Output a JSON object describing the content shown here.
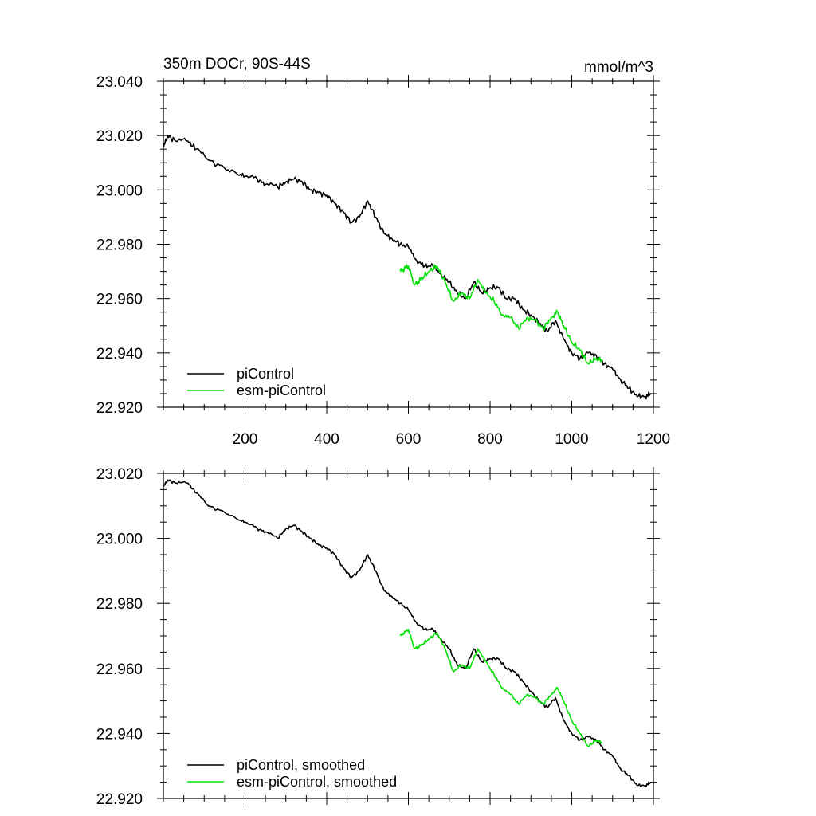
{
  "chart_data": [
    {
      "type": "line",
      "title_left": "350m DOCr, 90S-44S",
      "title_right": "mmol/m^3",
      "xlabel": "",
      "ylabel": "",
      "xlim": [
        0,
        1200
      ],
      "ylim": [
        22.92,
        23.04
      ],
      "xticks": [
        200,
        400,
        600,
        800,
        1000,
        1200
      ],
      "xtick_labels": [
        "200",
        "400",
        "600",
        "800",
        "1000",
        "1200"
      ],
      "yticks": [
        22.92,
        22.94,
        22.96,
        22.98,
        23.0,
        23.02,
        23.04
      ],
      "ytick_labels": [
        "22.920",
        "22.940",
        "22.960",
        "22.980",
        "23.000",
        "23.020",
        "23.040"
      ],
      "legend_position": "bottom-left",
      "series": [
        {
          "name": "piControl",
          "color": "#000000",
          "x": [
            1,
            10,
            30,
            60,
            80,
            110,
            150,
            180,
            200,
            230,
            250,
            280,
            300,
            320,
            340,
            360,
            380,
            400,
            420,
            440,
            460,
            480,
            500,
            520,
            540,
            560,
            580,
            600,
            620,
            640,
            660,
            680,
            700,
            720,
            740,
            760,
            780,
            800,
            820,
            840,
            860,
            880,
            900,
            920,
            940,
            960,
            980,
            1000,
            1020,
            1040,
            1060,
            1080,
            1100,
            1120,
            1140,
            1160,
            1180,
            1195
          ],
          "values": [
            23.016,
            23.02,
            23.018,
            23.018,
            23.015,
            23.011,
            23.008,
            23.006,
            23.005,
            23.004,
            23.002,
            23.001,
            23.003,
            23.004,
            23.003,
            23.0,
            22.999,
            22.998,
            22.995,
            22.992,
            22.988,
            22.99,
            22.996,
            22.99,
            22.984,
            22.982,
            22.98,
            22.979,
            22.974,
            22.972,
            22.972,
            22.969,
            22.966,
            22.962,
            22.96,
            22.966,
            22.962,
            22.964,
            22.964,
            22.96,
            22.96,
            22.956,
            22.954,
            22.951,
            22.948,
            22.952,
            22.945,
            22.94,
            22.938,
            22.94,
            22.939,
            22.936,
            22.934,
            22.93,
            22.927,
            22.924,
            22.924,
            22.925
          ]
        },
        {
          "name": "esm-piControl",
          "color": "#00e000",
          "x": [
            580,
            590,
            600,
            615,
            630,
            650,
            670,
            690,
            710,
            730,
            750,
            770,
            790,
            810,
            830,
            850,
            870,
            890,
            910,
            930,
            950,
            965,
            980,
            1000,
            1020,
            1040,
            1060,
            1075
          ],
          "values": [
            22.97,
            22.971,
            22.972,
            22.965,
            22.967,
            22.97,
            22.972,
            22.966,
            22.959,
            22.962,
            22.96,
            22.967,
            22.962,
            22.959,
            22.954,
            22.953,
            22.949,
            22.953,
            22.952,
            22.949,
            22.953,
            22.955,
            22.95,
            22.944,
            22.941,
            22.936,
            22.938,
            22.937
          ]
        }
      ]
    },
    {
      "type": "line",
      "title_left": "",
      "title_right": "",
      "xlabel": "",
      "ylabel": "",
      "xlim": [
        0,
        1200
      ],
      "ylim": [
        22.92,
        23.02
      ],
      "xticks": [
        200,
        400,
        600,
        800,
        1000,
        1200
      ],
      "xtick_labels": [],
      "yticks": [
        22.92,
        22.94,
        22.96,
        22.98,
        23.0,
        23.02
      ],
      "ytick_labels": [
        "22.920",
        "22.940",
        "22.960",
        "22.980",
        "23.000",
        "23.020"
      ],
      "legend_position": "bottom-left",
      "series": [
        {
          "name": "piControl, smoothed",
          "color": "#000000",
          "x": [
            1,
            10,
            30,
            60,
            80,
            110,
            150,
            180,
            200,
            230,
            250,
            280,
            300,
            320,
            340,
            360,
            380,
            400,
            420,
            440,
            460,
            480,
            500,
            520,
            540,
            560,
            580,
            600,
            620,
            640,
            660,
            680,
            700,
            720,
            740,
            760,
            780,
            800,
            820,
            840,
            860,
            880,
            900,
            920,
            940,
            960,
            980,
            1000,
            1020,
            1040,
            1060,
            1080,
            1100,
            1120,
            1140,
            1160,
            1180,
            1195
          ],
          "values": [
            23.016,
            23.018,
            23.017,
            23.017,
            23.014,
            23.01,
            23.008,
            23.006,
            23.005,
            23.003,
            23.002,
            23.0,
            23.003,
            23.004,
            23.002,
            23.0,
            22.998,
            22.997,
            22.995,
            22.991,
            22.988,
            22.99,
            22.995,
            22.99,
            22.984,
            22.982,
            22.98,
            22.978,
            22.974,
            22.972,
            22.972,
            22.969,
            22.966,
            22.961,
            22.96,
            22.966,
            22.962,
            22.963,
            22.963,
            22.96,
            22.959,
            22.956,
            22.953,
            22.95,
            22.948,
            22.951,
            22.944,
            22.94,
            22.938,
            22.939,
            22.938,
            22.935,
            22.933,
            22.929,
            22.927,
            22.924,
            22.924,
            22.925
          ]
        },
        {
          "name": "esm-piControl, smoothed",
          "color": "#00e000",
          "x": [
            580,
            590,
            600,
            615,
            630,
            650,
            670,
            690,
            710,
            730,
            750,
            770,
            790,
            810,
            830,
            850,
            870,
            890,
            910,
            930,
            950,
            965,
            980,
            1000,
            1020,
            1040,
            1060,
            1075
          ],
          "values": [
            22.97,
            22.971,
            22.972,
            22.966,
            22.967,
            22.969,
            22.971,
            22.966,
            22.959,
            22.961,
            22.96,
            22.966,
            22.962,
            22.958,
            22.954,
            22.952,
            22.949,
            22.952,
            22.951,
            22.949,
            22.952,
            22.954,
            22.95,
            22.944,
            22.94,
            22.936,
            22.938,
            22.937
          ]
        }
      ]
    }
  ]
}
